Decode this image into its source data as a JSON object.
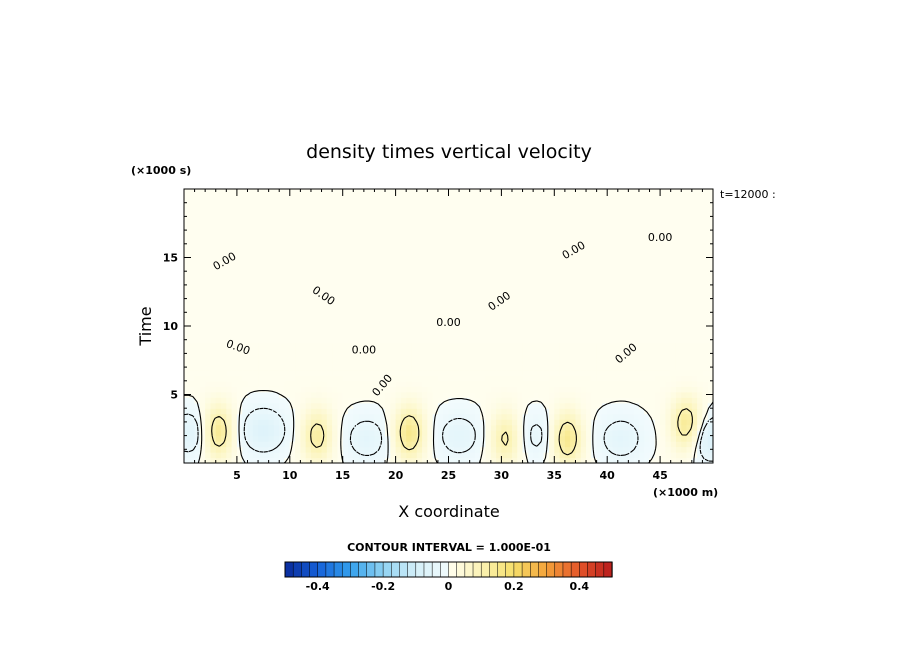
{
  "chart_data": {
    "type": "heatmap",
    "title": "density times vertical velocity",
    "xlabel": "X coordinate",
    "ylabel": "Time",
    "x_unit": "(×1000 m)",
    "y_unit": "(×1000 s)",
    "time_stamp": "t=12000 :",
    "xlim": [
      0,
      50
    ],
    "ylim": [
      0,
      20
    ],
    "x_ticks": [
      5,
      10,
      15,
      20,
      25,
      30,
      35,
      40,
      45
    ],
    "y_ticks": [
      5,
      10,
      15
    ],
    "contour_interval_label": "CONTOUR INTERVAL = 1.000E-01",
    "contour_label": "0.00",
    "colorbar": {
      "ticks": [
        -0.4,
        -0.2,
        0,
        0.2,
        0.4
      ],
      "tick_labels": [
        "-0.4",
        "-0.2",
        "0",
        "0.2",
        "0.4"
      ],
      "range": [
        -0.5,
        0.5
      ],
      "bins": 40,
      "colors_neg": [
        "#0a2a9a",
        "#1560d8",
        "#34a0ec",
        "#8fd2f2",
        "#d4eff8",
        "#f2fbfd"
      ],
      "colors_pos": [
        "#fffef0",
        "#fbf3b4",
        "#f5de6a",
        "#f4a23a",
        "#e4552a",
        "#b81c1c"
      ]
    },
    "positive_cells": [
      {
        "x": 3.2,
        "t": 2.3,
        "peak": 0.15
      },
      {
        "x": 12.6,
        "t": 2.0,
        "peak": 0.12
      },
      {
        "x": 21.3,
        "t": 2.2,
        "peak": 0.15
      },
      {
        "x": 30.4,
        "t": 1.8,
        "peak": 0.11
      },
      {
        "x": 36.2,
        "t": 1.8,
        "peak": 0.15
      },
      {
        "x": 47.5,
        "t": 2.8,
        "peak": 0.15
      }
    ],
    "negative_cells": [
      {
        "x": 0.7,
        "t": 2.2,
        "peak": -0.06
      },
      {
        "x": 7.5,
        "t": 2.4,
        "peak": -0.07
      },
      {
        "x": 17.3,
        "t": 1.8,
        "peak": -0.05
      },
      {
        "x": 26.0,
        "t": 2.0,
        "peak": -0.05
      },
      {
        "x": 33.4,
        "t": 2.0,
        "peak": -0.04
      },
      {
        "x": 41.3,
        "t": 1.8,
        "peak": -0.05
      },
      {
        "x": 49.6,
        "t": 1.8,
        "peak": -0.08
      }
    ]
  }
}
